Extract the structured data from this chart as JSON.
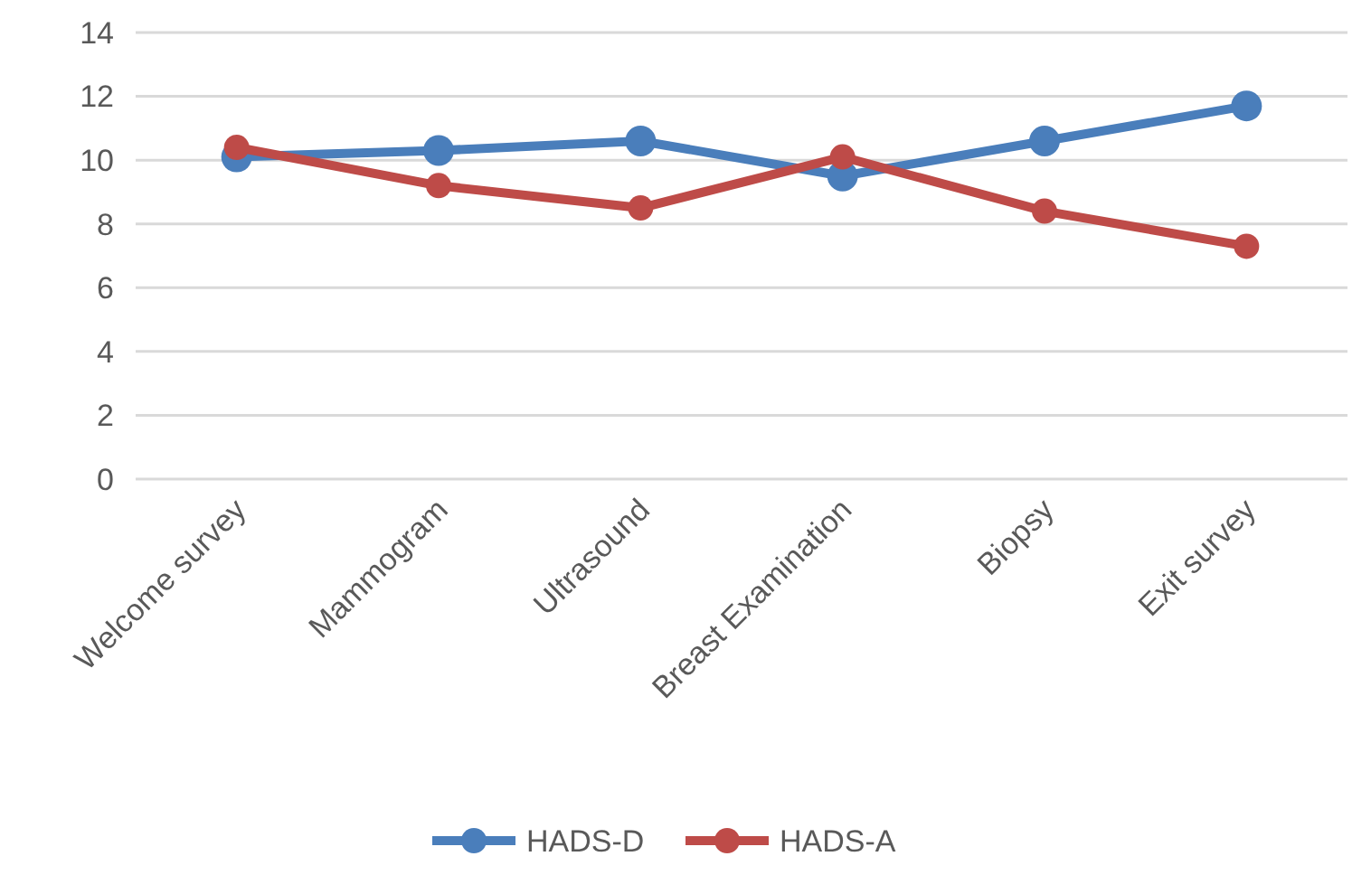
{
  "chart_data": {
    "type": "line",
    "categories": [
      "Welcome survey",
      "Mammogram",
      "Ultrasound",
      "Breast Examination",
      "Biopsy",
      "Exit survey"
    ],
    "series": [
      {
        "name": "HADS-D",
        "color": "#4a7ebb",
        "values": [
          10.1,
          10.3,
          10.6,
          9.5,
          10.6,
          11.7
        ]
      },
      {
        "name": "HADS-A",
        "color": "#be4b48",
        "values": [
          10.4,
          9.2,
          8.5,
          10.1,
          8.4,
          7.3
        ]
      }
    ],
    "ylim": [
      0,
      14
    ],
    "yticks": [
      0,
      2,
      4,
      6,
      8,
      10,
      12,
      14
    ],
    "grid": "y",
    "legend": "bottom",
    "marker": "circle",
    "line_style": "solid"
  }
}
